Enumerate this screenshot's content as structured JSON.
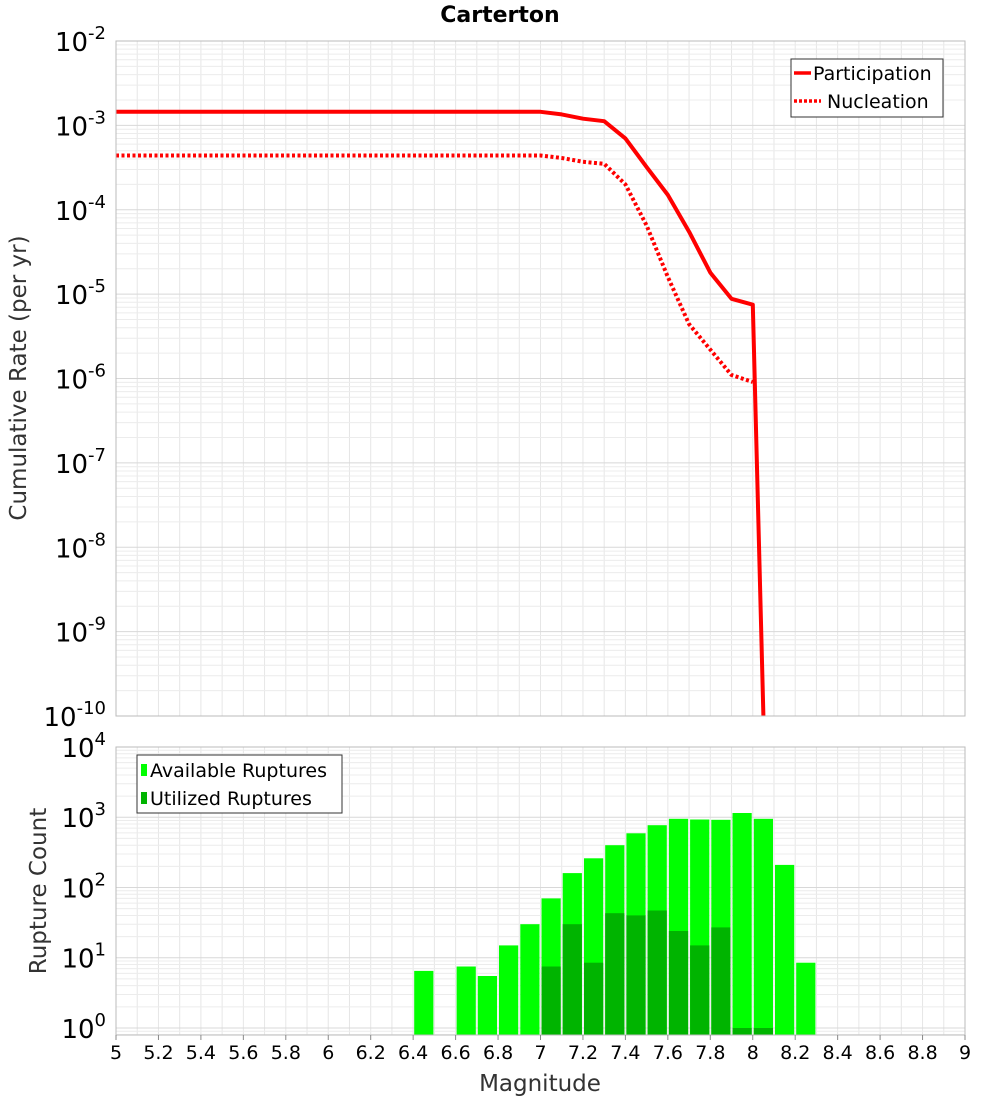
{
  "colors": {
    "participation": "#ff0000",
    "nucleation": "#ff0000",
    "available": "#00ff00",
    "utilized": "#00b400",
    "grid": "#e6e6e6",
    "frame": "#bbbbbb"
  },
  "chart_data": [
    {
      "type": "line",
      "title": "Carterton",
      "xlabel": "",
      "ylabel": "Cumulative Rate (per yr)",
      "yscale": "log",
      "xlim": [
        5,
        9
      ],
      "ylim_exp": [
        -10,
        -2
      ],
      "y_ticks": [
        {
          "base": "10",
          "exp": "-2"
        },
        {
          "base": "10",
          "exp": "-3"
        },
        {
          "base": "10",
          "exp": "-4"
        },
        {
          "base": "10",
          "exp": "-5"
        },
        {
          "base": "10",
          "exp": "-6"
        },
        {
          "base": "10",
          "exp": "-7"
        },
        {
          "base": "10",
          "exp": "-8"
        },
        {
          "base": "10",
          "exp": "-9"
        },
        {
          "base": "10",
          "exp": "-10"
        }
      ],
      "legend_position": "top-right",
      "series": [
        {
          "name": "Participation",
          "style": "solid",
          "x": [
            5.0,
            7.0,
            7.1,
            7.2,
            7.3,
            7.4,
            7.5,
            7.6,
            7.7,
            7.8,
            7.9,
            8.0,
            8.05
          ],
          "y": [
            0.00145,
            0.00145,
            0.00135,
            0.0012,
            0.00112,
            0.0007,
            0.00032,
            0.00015,
            5.5e-05,
            1.8e-05,
            8.8e-06,
            7.5e-06,
            1e-10
          ]
        },
        {
          "name": "Nucleation",
          "style": "dotted",
          "x": [
            5.0,
            7.0,
            7.1,
            7.2,
            7.3,
            7.4,
            7.5,
            7.6,
            7.7,
            7.8,
            7.9,
            8.0
          ],
          "y": [
            0.00044,
            0.00044,
            0.00041,
            0.00037,
            0.00035,
            0.0002,
            6.5e-05,
            1.6e-05,
            4.4e-06,
            2.2e-06,
            1.1e-06,
            9.1e-07
          ]
        }
      ]
    },
    {
      "type": "bar",
      "xlabel": "Magnitude",
      "ylabel": "Rupture Count",
      "yscale": "log",
      "xlim": [
        5,
        9
      ],
      "ylim_exp": [
        -0.1,
        4
      ],
      "bin_width": 0.1,
      "x_ticks": [
        "5",
        "5.2",
        "5.4",
        "5.6",
        "5.8",
        "6",
        "6.2",
        "6.4",
        "6.6",
        "6.8",
        "7",
        "7.2",
        "7.4",
        "7.6",
        "7.8",
        "8",
        "8.2",
        "8.4",
        "8.6",
        "8.8",
        "9"
      ],
      "y_ticks": [
        {
          "base": "10",
          "exp": "4"
        },
        {
          "base": "10",
          "exp": "3"
        },
        {
          "base": "10",
          "exp": "2"
        },
        {
          "base": "10",
          "exp": "1"
        },
        {
          "base": "10",
          "exp": "0"
        }
      ],
      "legend_position": "top-left",
      "series": [
        {
          "name": "Available Ruptures",
          "x": [
            6.45,
            6.65,
            6.75,
            6.85,
            6.95,
            7.05,
            7.15,
            7.25,
            7.35,
            7.45,
            7.55,
            7.65,
            7.75,
            7.85,
            7.95,
            8.05,
            8.15,
            8.25
          ],
          "values": [
            6.5,
            7.5,
            5.5,
            15,
            30,
            70,
            160,
            260,
            400,
            590,
            770,
            950,
            930,
            920,
            1150,
            950,
            210,
            8.5
          ]
        },
        {
          "name": "Utilized Ruptures",
          "x": [
            7.05,
            7.15,
            7.25,
            7.35,
            7.45,
            7.55,
            7.65,
            7.75,
            7.85,
            7.95,
            8.05
          ],
          "values": [
            7.5,
            30,
            8.5,
            43,
            40,
            47,
            24,
            15,
            27,
            1,
            1
          ]
        }
      ]
    }
  ]
}
